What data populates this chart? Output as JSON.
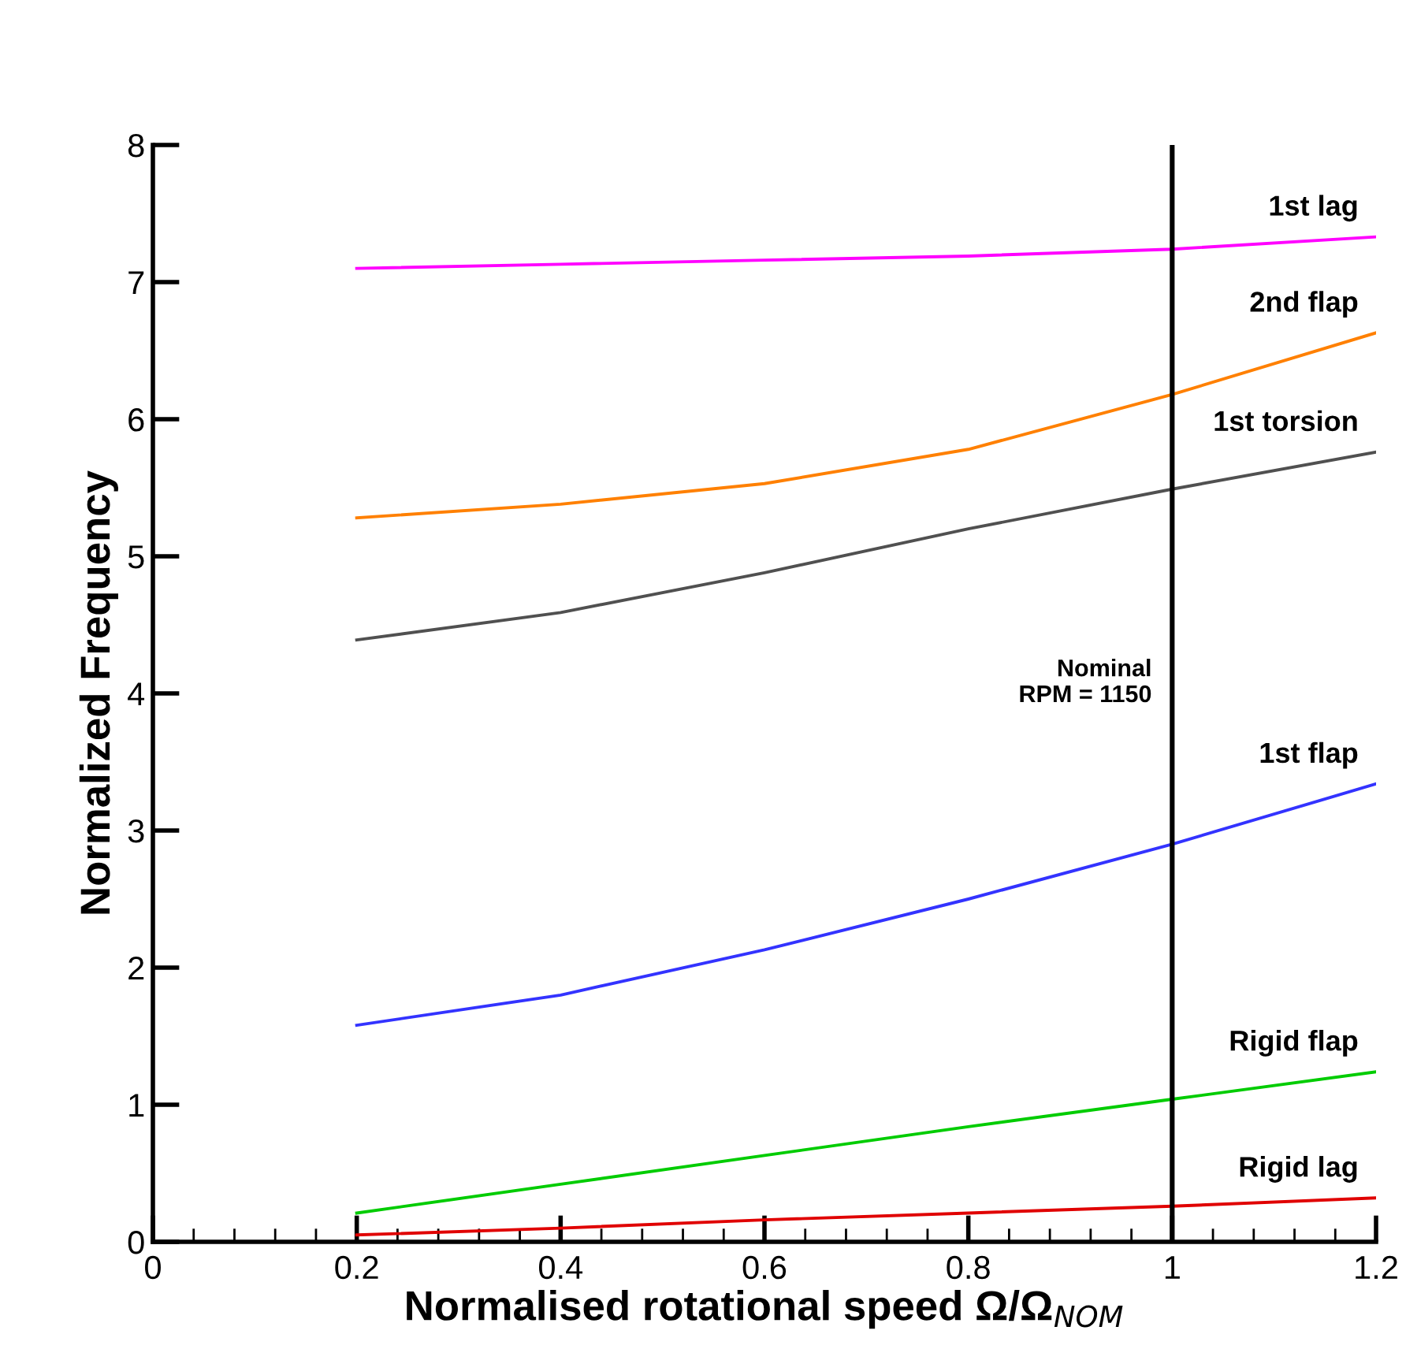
{
  "chart_data": {
    "type": "line",
    "xlabel": "Normalised rotational speed Ω/Ω$_{NOM}$",
    "ylabel": "Normalized Frequency",
    "x": [
      0.2,
      0.4,
      0.6,
      0.8,
      1.0,
      1.2
    ],
    "series": [
      {
        "name": "1st lag",
        "color": "#ff00ff",
        "values": [
          7.1,
          7.13,
          7.16,
          7.19,
          7.24,
          7.33
        ]
      },
      {
        "name": "2nd flap",
        "color": "#ff8000",
        "values": [
          5.28,
          5.38,
          5.53,
          5.78,
          6.18,
          6.63
        ]
      },
      {
        "name": "1st torsion",
        "color": "#505050",
        "values": [
          4.39,
          4.59,
          4.88,
          5.2,
          5.49,
          5.76
        ]
      },
      {
        "name": "1st flap",
        "color": "#3333ff",
        "values": [
          1.58,
          1.8,
          2.13,
          2.5,
          2.9,
          3.34
        ]
      },
      {
        "name": "Rigid flap",
        "color": "#00cc00",
        "values": [
          0.21,
          0.42,
          0.63,
          0.84,
          1.04,
          1.24
        ]
      },
      {
        "name": "Rigid lag",
        "color": "#e00000",
        "values": [
          0.05,
          0.1,
          0.16,
          0.21,
          0.26,
          0.32
        ]
      }
    ],
    "xlim": [
      0,
      1.2
    ],
    "xticks": [
      0,
      0.2,
      0.4,
      0.6,
      0.8,
      1,
      1.2
    ],
    "ylim": [
      0,
      8
    ],
    "yticks": [
      0,
      1,
      2,
      3,
      4,
      5,
      6,
      7,
      8
    ],
    "ref_lines": [
      {
        "axis": "x",
        "value": 1,
        "color": "#000000"
      }
    ],
    "annotations": [
      "Nominal\nRPM = 1150"
    ],
    "grid": false,
    "legend": false,
    "marker": "none",
    "line_style": "solid"
  }
}
